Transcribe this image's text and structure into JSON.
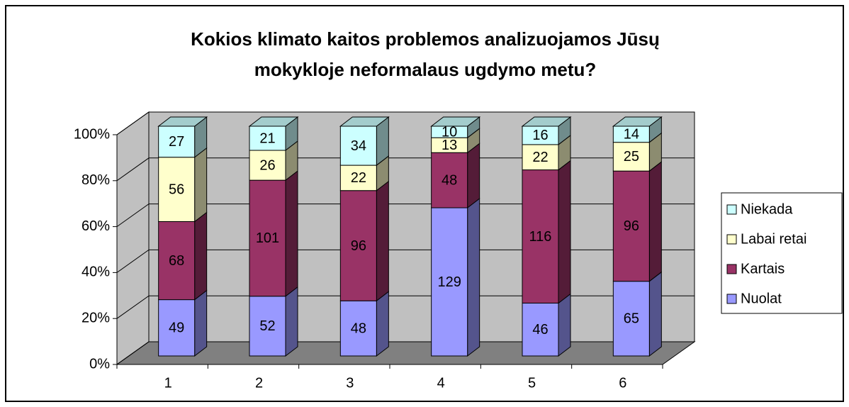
{
  "chart_data": {
    "type": "bar",
    "stack": "percent",
    "three_d": true,
    "title": "Kokios klimato kaitos problemos analizuojamos Jūsų",
    "subtitle": "mokykloje neformalaus ugdymo metu?",
    "categories": [
      "1",
      "2",
      "3",
      "4",
      "5",
      "6"
    ],
    "series": [
      {
        "name": "Nuolat",
        "color": "#9999ff",
        "values": [
          49,
          52,
          48,
          129,
          46,
          65
        ]
      },
      {
        "name": "Kartais",
        "color": "#993366",
        "values": [
          68,
          101,
          96,
          48,
          116,
          96
        ]
      },
      {
        "name": "Labai retai",
        "color": "#ffffcc",
        "values": [
          56,
          26,
          22,
          13,
          22,
          25
        ]
      },
      {
        "name": "Niekada",
        "color": "#ccffff",
        "values": [
          27,
          21,
          34,
          10,
          16,
          14
        ]
      }
    ],
    "ylim": [
      0,
      100
    ],
    "yticks": [
      {
        "value": 0,
        "label": "0%"
      },
      {
        "value": 20,
        "label": "20%"
      },
      {
        "value": 40,
        "label": "40%"
      },
      {
        "value": 60,
        "label": "60%"
      },
      {
        "value": 80,
        "label": "80%"
      },
      {
        "value": 100,
        "label": "100%"
      }
    ],
    "grid": true,
    "legend": "right",
    "wall_color": "#c0c0c0",
    "floor_color": "#808080"
  }
}
